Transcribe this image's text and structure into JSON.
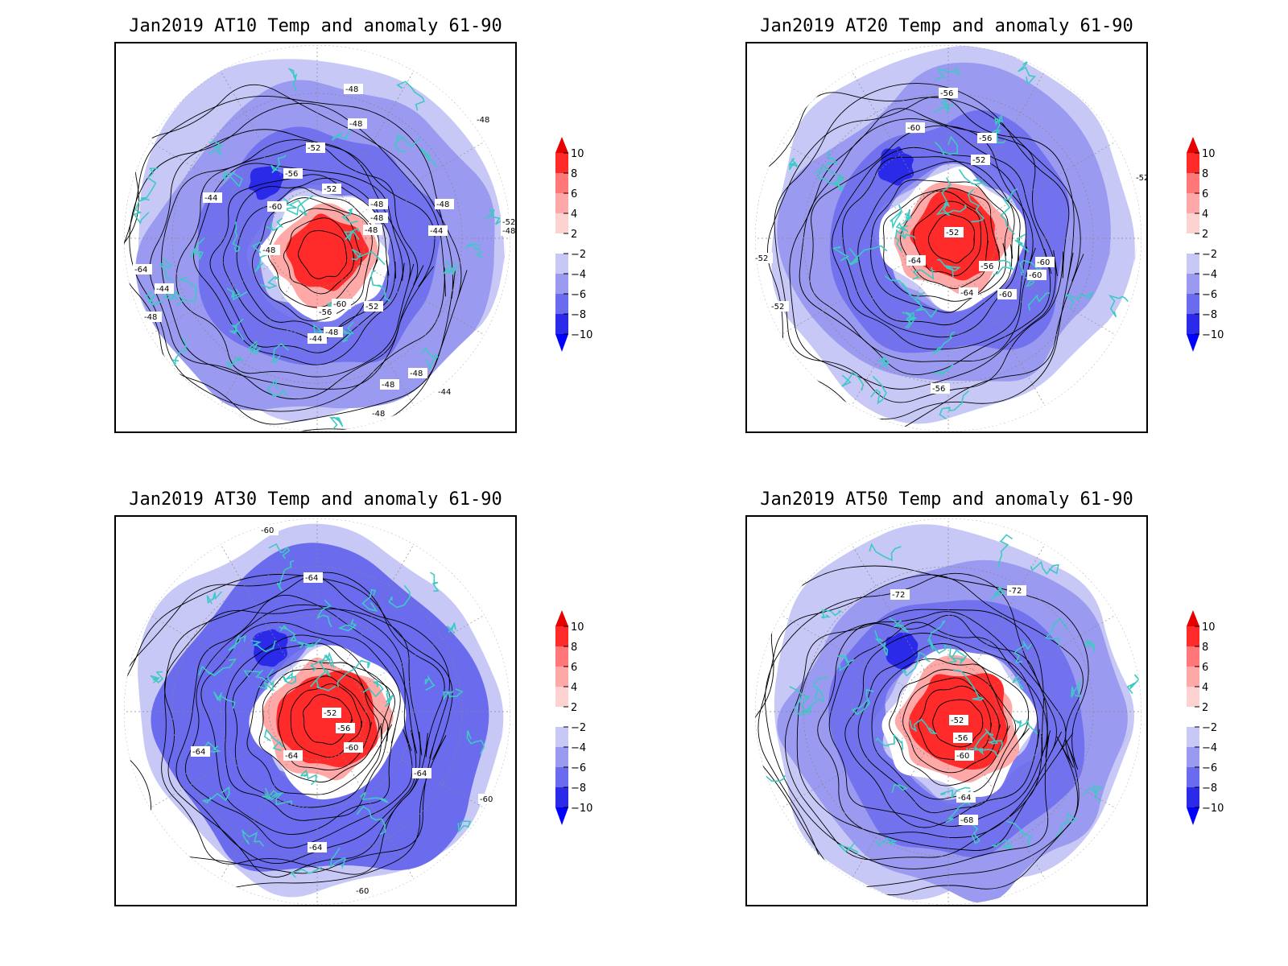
{
  "colors": {
    "anomaly_scale": [
      "#0000ff",
      "#2a2ae8",
      "#6b6bee",
      "#9a9af0",
      "#c8c8f7",
      "#ffffff",
      "#ffd2d2",
      "#ffa8a8",
      "#ff7777",
      "#ff2a2a",
      "#e60000"
    ],
    "coastline": "#3ec9c4",
    "contour": "#000000"
  },
  "colorbar": {
    "labels": [
      "10",
      "8",
      "6",
      "4",
      "2",
      "−2",
      "−4",
      "−6",
      "−8",
      "−10"
    ]
  },
  "panels": [
    {
      "title": "Jan2019 AT10 Temp and anomaly 61-90",
      "contour_labels": [
        "-48",
        "-48",
        "-52",
        "-56",
        "-52",
        "-44",
        "-60",
        "-48",
        "-48",
        "-48",
        "-44",
        "-48",
        "-64",
        "-48",
        "-44",
        "-48",
        "-60",
        "-56",
        "-52",
        "-48",
        "-44",
        "-48",
        "-44",
        "-48",
        "-48",
        "-48",
        "-52",
        "-48"
      ]
    },
    {
      "title": "Jan2019 AT20 Temp and anomaly 61-90",
      "contour_labels": [
        "-56",
        "-60",
        "-56",
        "-52",
        "-52",
        "-52",
        "-52",
        "-64",
        "-56",
        "-60",
        "-60",
        "-64",
        "-60",
        "-52",
        "-56"
      ]
    },
    {
      "title": "Jan2019 AT30 Temp and anomaly 61-90",
      "contour_labels": [
        "-60",
        "-64",
        "-52",
        "-56",
        "-60",
        "-64",
        "-64",
        "-64",
        "-60",
        "-64",
        "-60"
      ]
    },
    {
      "title": "Jan2019 AT50 Temp and anomaly 61-90",
      "contour_labels": [
        "-72",
        "-72",
        "-52",
        "-56",
        "-60",
        "-64",
        "-68"
      ]
    }
  ]
}
